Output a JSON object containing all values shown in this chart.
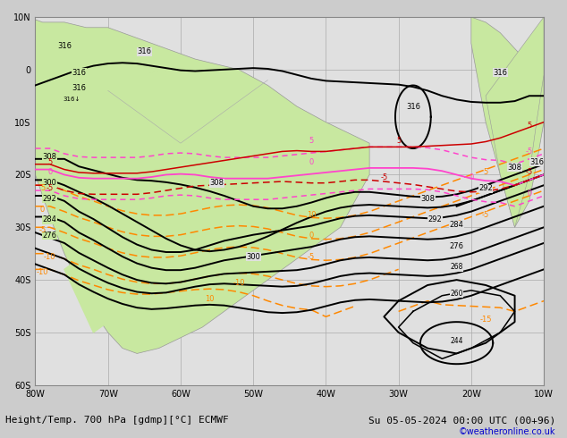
{
  "title_left": "Height/Temp. 700 hPa [gdmp][°C] ECMWF",
  "title_right": "Su 05-05-2024 00:00 UTC (00+96)",
  "copyright": "©weatheronline.co.uk",
  "background_land": "#c8e8a0",
  "background_sea": "#e0e0e0",
  "grid_color": "#aaaaaa",
  "border_color": "#888888",
  "hc": "#000000",
  "pink": "#ff44cc",
  "red": "#cc0000",
  "orange": "#ff8800",
  "copyright_color": "#0000cc",
  "figsize": [
    6.34,
    4.9
  ],
  "dpi": 100,
  "xlim": [
    -80,
    -10
  ],
  "ylim": [
    -60,
    10
  ],
  "xticks": [
    -80,
    -70,
    -60,
    -50,
    -40,
    -30,
    -20,
    -10
  ],
  "yticks": [
    -60,
    -50,
    -40,
    -30,
    -20,
    -10,
    0,
    10
  ],
  "xlabel_labels": [
    "80W",
    "70W",
    "60W",
    "50W",
    "40W",
    "30W",
    "20W",
    "10W"
  ],
  "ylabel_labels": [
    "60S",
    "50S",
    "40S",
    "30S",
    "20S",
    "10S",
    "0",
    "10N"
  ],
  "font_size_title": 8,
  "font_size_labels": 7,
  "font_size_copyright": 7
}
